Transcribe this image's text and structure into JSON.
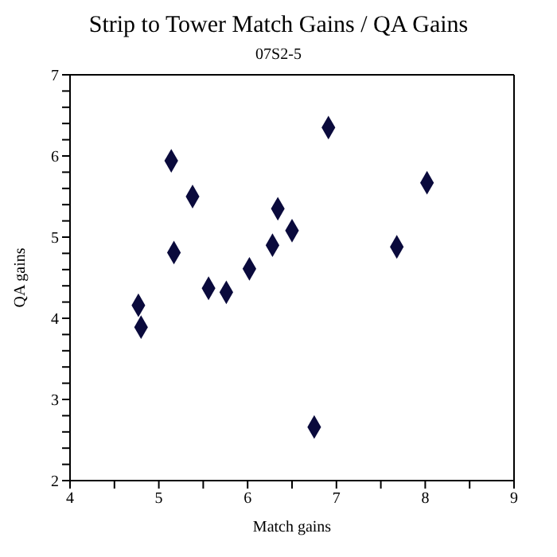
{
  "chart_data": {
    "type": "scatter",
    "title": "Strip to Tower Match Gains / QA Gains",
    "subtitle": "07S2-5",
    "xlabel": "Match gains",
    "ylabel": "QA gains",
    "x": [
      4.77,
      4.8,
      5.14,
      5.17,
      5.38,
      5.56,
      5.76,
      6.02,
      6.28,
      6.34,
      6.5,
      6.75,
      6.91,
      7.68,
      8.02
    ],
    "values": [
      4.16,
      3.89,
      5.94,
      4.81,
      5.5,
      4.37,
      4.32,
      4.61,
      4.9,
      5.35,
      5.08,
      2.66,
      6.35,
      4.88,
      5.67
    ],
    "color": "#0a0a3c",
    "marker": "diamond",
    "grid": false,
    "xlim": [
      4,
      9
    ],
    "xticks": [
      4,
      {
        "value": 4.5,
        "label": null
      },
      5,
      {
        "value": 5.5,
        "label": null
      },
      6,
      {
        "value": 6.5,
        "label": null
      },
      7,
      {
        "value": 7.5,
        "label": null
      },
      8,
      {
        "value": 8.5,
        "label": null
      },
      9
    ],
    "ylim": [
      2,
      7
    ],
    "yticks": [
      2,
      {
        "value": 2.2,
        "label": null
      },
      {
        "value": 2.4,
        "label": null
      },
      {
        "value": 2.6,
        "label": null
      },
      {
        "value": 2.8,
        "label": null
      },
      3,
      {
        "value": 3.2,
        "label": null
      },
      {
        "value": 3.4,
        "label": null
      },
      {
        "value": 3.6,
        "label": null
      },
      {
        "value": 3.8,
        "label": null
      },
      4,
      {
        "value": 4.2,
        "label": null
      },
      {
        "value": 4.4,
        "label": null
      },
      {
        "value": 4.6,
        "label": null
      },
      {
        "value": 4.8,
        "label": null
      },
      5,
      {
        "value": 5.2,
        "label": null
      },
      {
        "value": 5.4,
        "label": null
      },
      {
        "value": 5.6,
        "label": null
      },
      {
        "value": 5.8,
        "label": null
      },
      6,
      {
        "value": 6.2,
        "label": null
      },
      {
        "value": 6.4,
        "label": null
      },
      {
        "value": 6.6,
        "label": null
      },
      {
        "value": 6.8,
        "label": null
      },
      7
    ]
  }
}
